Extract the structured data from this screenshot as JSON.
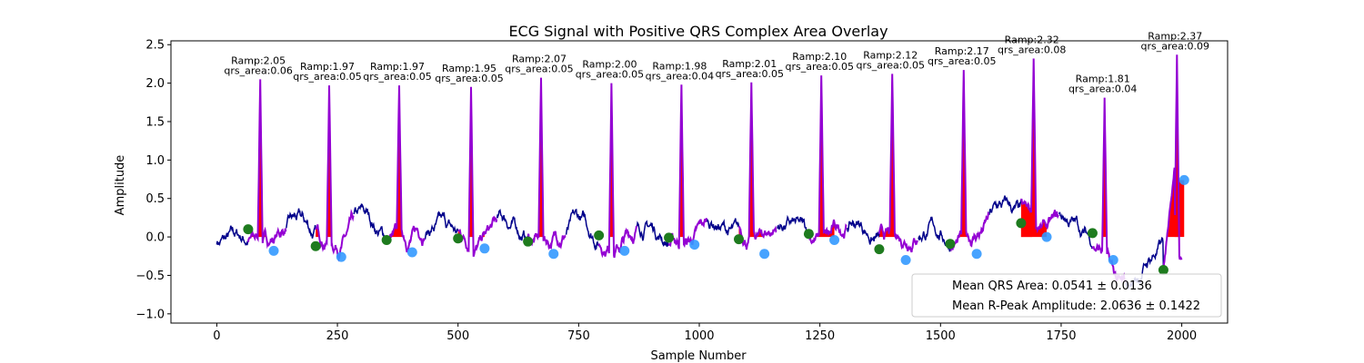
{
  "chart_data": {
    "type": "line",
    "title": "ECG Signal with Positive QRS Complex Area Overlay",
    "xlabel": "Sample Number",
    "ylabel": "Amplitude",
    "xlim": [
      -95,
      2095
    ],
    "ylim": [
      -1.12,
      2.55
    ],
    "xticks": [
      0,
      250,
      500,
      750,
      1000,
      1250,
      1500,
      1750,
      2000
    ],
    "yticks": [
      -1.0,
      -0.5,
      0.0,
      0.5,
      1.0,
      1.5,
      2.0,
      2.5
    ],
    "xtick_labels": [
      "0",
      "250",
      "500",
      "750",
      "1000",
      "1250",
      "1500",
      "1750",
      "2000"
    ],
    "ytick_labels": [
      "−1.0",
      "−0.5",
      "0.0",
      "0.5",
      "1.0",
      "1.5",
      "2.0",
      "2.5"
    ],
    "colors": {
      "signal": "#00008b",
      "qrs_segment": "#9400d3",
      "qrs_area": "#ff0000",
      "onset_marker": "#1e7b1e",
      "offset_marker": "#3399ff"
    },
    "beats": [
      {
        "r_x": 90,
        "r_amp": 2.05,
        "qrs_area": 0.06,
        "onset_x": 65,
        "onset_y": 0.1,
        "offset_x": 118,
        "offset_y": -0.18,
        "base": 0.0
      },
      {
        "r_x": 233,
        "r_amp": 1.97,
        "qrs_area": 0.05,
        "onset_x": 205,
        "onset_y": -0.12,
        "offset_x": 258,
        "offset_y": -0.26,
        "base": 0.0
      },
      {
        "r_x": 378,
        "r_amp": 1.97,
        "qrs_area": 0.05,
        "onset_x": 352,
        "onset_y": -0.04,
        "offset_x": 405,
        "offset_y": -0.2,
        "base": 0.0
      },
      {
        "r_x": 527,
        "r_amp": 1.95,
        "qrs_area": 0.05,
        "onset_x": 500,
        "onset_y": -0.02,
        "offset_x": 555,
        "offset_y": -0.15,
        "base": 0.0
      },
      {
        "r_x": 672,
        "r_amp": 2.07,
        "qrs_area": 0.05,
        "onset_x": 645,
        "onset_y": -0.06,
        "offset_x": 698,
        "offset_y": -0.22,
        "base": 0.0
      },
      {
        "r_x": 818,
        "r_amp": 2.0,
        "qrs_area": 0.05,
        "onset_x": 792,
        "onset_y": 0.02,
        "offset_x": 845,
        "offset_y": -0.18,
        "base": 0.0
      },
      {
        "r_x": 963,
        "r_amp": 1.98,
        "qrs_area": 0.04,
        "onset_x": 937,
        "onset_y": -0.01,
        "offset_x": 990,
        "offset_y": -0.1,
        "base": 0.0
      },
      {
        "r_x": 1108,
        "r_amp": 2.01,
        "qrs_area": 0.05,
        "onset_x": 1082,
        "onset_y": -0.03,
        "offset_x": 1135,
        "offset_y": -0.22,
        "base": 0.0
      },
      {
        "r_x": 1253,
        "r_amp": 2.1,
        "qrs_area": 0.05,
        "onset_x": 1227,
        "onset_y": 0.04,
        "offset_x": 1280,
        "offset_y": -0.04,
        "base": 0.0
      },
      {
        "r_x": 1400,
        "r_amp": 2.12,
        "qrs_area": 0.05,
        "onset_x": 1373,
        "onset_y": -0.16,
        "offset_x": 1428,
        "offset_y": -0.3,
        "base": 0.0
      },
      {
        "r_x": 1548,
        "r_amp": 2.17,
        "qrs_area": 0.05,
        "onset_x": 1520,
        "onset_y": -0.09,
        "offset_x": 1575,
        "offset_y": -0.22,
        "base": 0.0
      },
      {
        "r_x": 1693,
        "r_amp": 2.32,
        "qrs_area": 0.08,
        "onset_x": 1667,
        "onset_y": 0.18,
        "offset_x": 1720,
        "offset_y": 0.0,
        "base": 0.0
      },
      {
        "r_x": 1840,
        "r_amp": 1.81,
        "qrs_area": 0.04,
        "onset_x": 1815,
        "onset_y": 0.05,
        "offset_x": 1858,
        "offset_y": -0.3,
        "base": 0.0
      },
      {
        "r_x": 1990,
        "r_amp": 2.37,
        "qrs_area": 0.09,
        "onset_x": 1962,
        "onset_y": -0.43,
        "offset_x": 2005,
        "offset_y": 0.74,
        "base": 0.0
      }
    ],
    "legend": {
      "placement": "lower-right",
      "entries": [
        "Mean QRS Area: 0.0541 ± 0.0136",
        "Mean R-Peak Amplitude: 2.0636 ± 0.1422"
      ]
    }
  }
}
